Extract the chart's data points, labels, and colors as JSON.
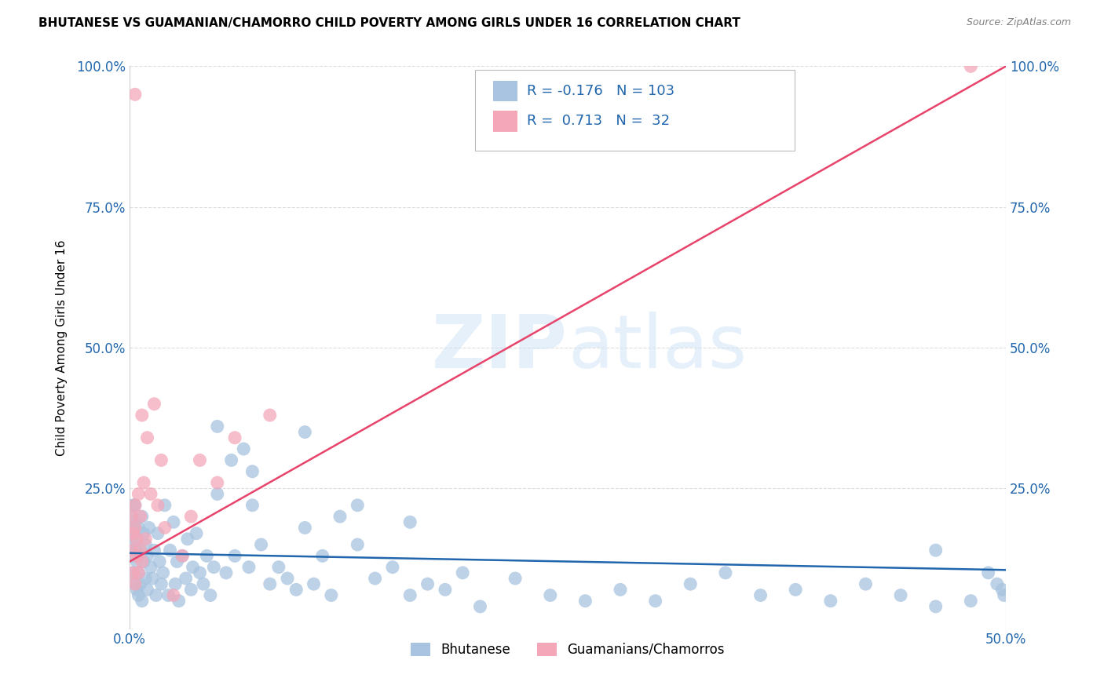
{
  "title": "BHUTANESE VS GUAMANIAN/CHAMORRO CHILD POVERTY AMONG GIRLS UNDER 16 CORRELATION CHART",
  "source": "Source: ZipAtlas.com",
  "ylabel": "Child Poverty Among Girls Under 16",
  "blue_color": "#a8c4e0",
  "pink_color": "#f4a7b9",
  "blue_line_color": "#2166ac",
  "pink_line_color": "#e8436a",
  "blue_R": -0.176,
  "blue_N": 103,
  "pink_R": 0.713,
  "pink_N": 32,
  "xlim": [
    0.0,
    0.5
  ],
  "ylim": [
    0.0,
    1.0
  ],
  "blue_line_y0": 0.135,
  "blue_line_y1": 0.105,
  "pink_line_y0": 0.12,
  "pink_line_y1": 1.0,
  "watermark": "ZIPatlas",
  "background_color": "#ffffff",
  "grid_color": "#dddddd",
  "blue_scatter_x": [
    0.0005,
    0.001,
    0.001,
    0.0015,
    0.002,
    0.002,
    0.002,
    0.003,
    0.003,
    0.003,
    0.003,
    0.004,
    0.004,
    0.004,
    0.005,
    0.005,
    0.005,
    0.006,
    0.006,
    0.007,
    0.007,
    0.008,
    0.008,
    0.009,
    0.009,
    0.01,
    0.01,
    0.011,
    0.012,
    0.013,
    0.014,
    0.015,
    0.016,
    0.017,
    0.018,
    0.019,
    0.02,
    0.022,
    0.023,
    0.025,
    0.026,
    0.027,
    0.028,
    0.03,
    0.032,
    0.033,
    0.035,
    0.036,
    0.038,
    0.04,
    0.042,
    0.044,
    0.046,
    0.048,
    0.05,
    0.055,
    0.058,
    0.06,
    0.065,
    0.068,
    0.07,
    0.075,
    0.08,
    0.085,
    0.09,
    0.095,
    0.1,
    0.105,
    0.11,
    0.115,
    0.12,
    0.13,
    0.14,
    0.15,
    0.16,
    0.17,
    0.18,
    0.19,
    0.2,
    0.22,
    0.24,
    0.26,
    0.28,
    0.3,
    0.32,
    0.34,
    0.36,
    0.38,
    0.4,
    0.42,
    0.44,
    0.46,
    0.48,
    0.49,
    0.495,
    0.498,
    0.499,
    0.05,
    0.07,
    0.1,
    0.13,
    0.16,
    0.46
  ],
  "blue_scatter_y": [
    0.14,
    0.16,
    0.2,
    0.13,
    0.1,
    0.18,
    0.22,
    0.08,
    0.14,
    0.19,
    0.22,
    0.07,
    0.12,
    0.16,
    0.1,
    0.18,
    0.06,
    0.14,
    0.08,
    0.2,
    0.05,
    0.12,
    0.17,
    0.09,
    0.15,
    0.13,
    0.07,
    0.18,
    0.11,
    0.09,
    0.14,
    0.06,
    0.17,
    0.12,
    0.08,
    0.1,
    0.22,
    0.06,
    0.14,
    0.19,
    0.08,
    0.12,
    0.05,
    0.13,
    0.09,
    0.16,
    0.07,
    0.11,
    0.17,
    0.1,
    0.08,
    0.13,
    0.06,
    0.11,
    0.36,
    0.1,
    0.3,
    0.13,
    0.32,
    0.11,
    0.22,
    0.15,
    0.08,
    0.11,
    0.09,
    0.07,
    0.18,
    0.08,
    0.13,
    0.06,
    0.2,
    0.15,
    0.09,
    0.11,
    0.06,
    0.08,
    0.07,
    0.1,
    0.04,
    0.09,
    0.06,
    0.05,
    0.07,
    0.05,
    0.08,
    0.1,
    0.06,
    0.07,
    0.05,
    0.08,
    0.06,
    0.04,
    0.05,
    0.1,
    0.08,
    0.07,
    0.06,
    0.24,
    0.28,
    0.35,
    0.22,
    0.19,
    0.14
  ],
  "pink_scatter_x": [
    0.001,
    0.001,
    0.002,
    0.002,
    0.003,
    0.003,
    0.003,
    0.004,
    0.004,
    0.005,
    0.005,
    0.006,
    0.006,
    0.007,
    0.007,
    0.008,
    0.009,
    0.01,
    0.012,
    0.014,
    0.016,
    0.018,
    0.02,
    0.025,
    0.03,
    0.035,
    0.04,
    0.05,
    0.06,
    0.08,
    0.003,
    0.48
  ],
  "pink_scatter_y": [
    0.14,
    0.2,
    0.1,
    0.17,
    0.08,
    0.18,
    0.22,
    0.13,
    0.16,
    0.1,
    0.24,
    0.14,
    0.2,
    0.38,
    0.12,
    0.26,
    0.16,
    0.34,
    0.24,
    0.4,
    0.22,
    0.3,
    0.18,
    0.06,
    0.13,
    0.2,
    0.3,
    0.26,
    0.34,
    0.38,
    0.95,
    1.0
  ]
}
